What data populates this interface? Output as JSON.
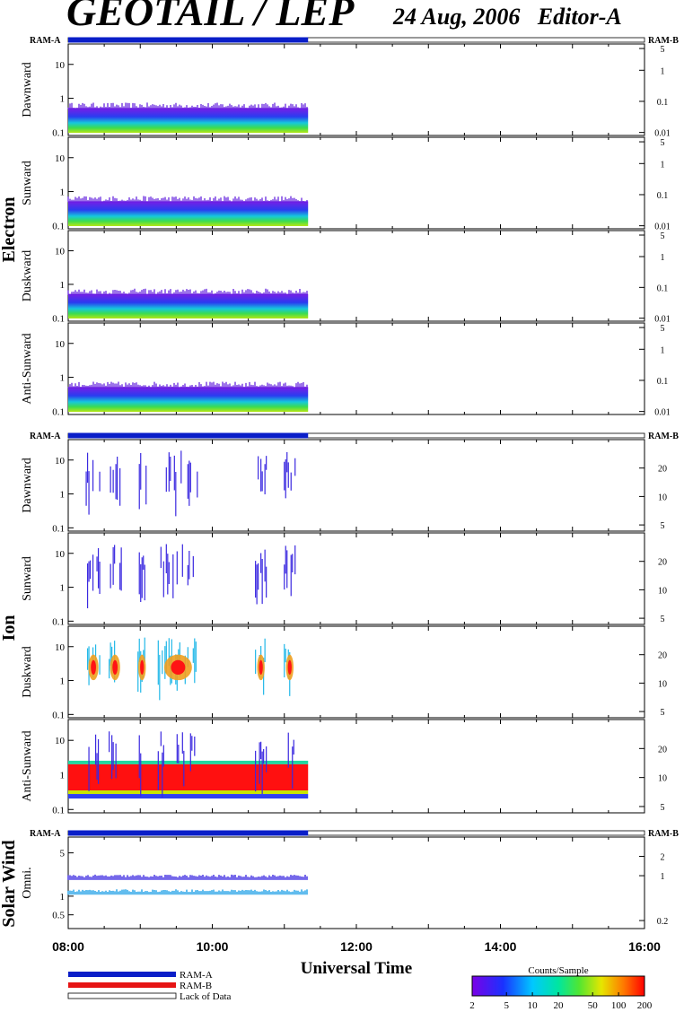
{
  "header": {
    "title": "GEOTAIL / LEP",
    "date": "24 Aug, 2006",
    "editor": "Editor-A"
  },
  "colors": {
    "ram_a": "#0a1ec8",
    "ram_b": "#e61414",
    "lack": "#ffffff"
  },
  "chart_data": {
    "type": "heatmap",
    "xlabel": "Universal Time",
    "x_tick_labels": [
      "08:00",
      "10:00",
      "12:00",
      "14:00",
      "16:00"
    ],
    "xlim_hours": [
      8,
      16
    ],
    "data_end_hour": 11.33,
    "groups": [
      {
        "name": "Electron",
        "ram_left": "RAM-A",
        "ram_right": "RAM-B",
        "left_ticks": [
          "10",
          "1",
          "0.1"
        ],
        "left_tick_values": [
          10,
          1,
          0.1
        ],
        "ylim": [
          0.08,
          40
        ],
        "right_ticks": [
          "5",
          "1",
          "0.1",
          "0.01"
        ],
        "right_tick_values": [
          5,
          1,
          0.1,
          0.01
        ],
        "right_ylim": [
          0.008,
          7
        ],
        "panels": [
          "Dawnward",
          "Sunward",
          "Duskward",
          "Anti-Sunward"
        ]
      },
      {
        "name": "Ion",
        "ram_left": "RAM-A",
        "ram_right": "RAM-B",
        "left_ticks": [
          "10",
          "1",
          "0.1"
        ],
        "left_tick_values": [
          10,
          1,
          0.1
        ],
        "ylim": [
          0.08,
          40
        ],
        "right_ticks": [
          "20",
          "10",
          "5"
        ],
        "right_tick_values": [
          20,
          10,
          5
        ],
        "right_ylim": [
          4.3,
          40
        ],
        "panels": [
          "Dawnward",
          "Sunward",
          "Duskward",
          "Anti-Sunward"
        ]
      },
      {
        "name": "Solar Wind",
        "ram_left": "RAM-A",
        "ram_right": "RAM-B",
        "left_ticks": [
          "5",
          "1",
          "0.5"
        ],
        "left_tick_values": [
          5,
          1,
          0.5
        ],
        "ylim": [
          0.3,
          9
        ],
        "right_ticks": [
          "2",
          "1",
          "0.2"
        ],
        "right_tick_values": [
          2,
          1,
          0.2
        ],
        "right_ylim": [
          0.15,
          4
        ],
        "panels": [
          "Omni."
        ]
      }
    ],
    "legend": {
      "items": [
        "RAM-A",
        "RAM-B",
        "Lack of Data"
      ]
    },
    "colorbar": {
      "title": "Counts/Sample",
      "tick_labels": [
        "2",
        "5",
        "10",
        "20",
        "50",
        "100",
        "200"
      ],
      "tick_values": [
        2,
        5,
        10,
        20,
        50,
        100,
        200
      ],
      "range": [
        2,
        200
      ]
    }
  }
}
